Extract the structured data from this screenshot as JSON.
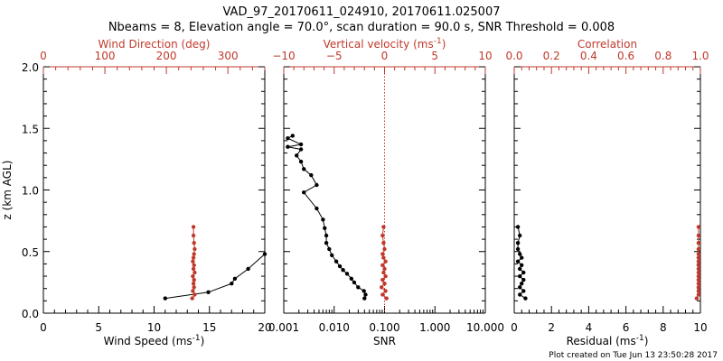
{
  "title_line1": "VAD_97_20170611_024910, 20170611.025007",
  "title_line2": "Nbeams = 8, Elevation angle = 70.0°, scan duration = 90.0 s, SNR Threshold = 0.008",
  "footer": "Plot created on Tue Jun 13 23:50:28 2017",
  "colors": {
    "primary": "#000000",
    "secondary": "#c0392b"
  },
  "chart_data": [
    {
      "type": "line",
      "ylabel": "z (km AGL)",
      "ylim": [
        0,
        2.0
      ],
      "yticks": [
        "0.0",
        "0.5",
        "1.0",
        "1.5",
        "2.0"
      ],
      "bottom_axis": {
        "label": "Wind Speed (ms",
        "label_sup": "-1",
        "label_end": ")",
        "range": [
          0,
          20
        ],
        "ticks": [
          "0",
          "5",
          "10",
          "15",
          "20"
        ]
      },
      "top_axis": {
        "label": "Wind Direction (deg)",
        "range": [
          0,
          360
        ],
        "ticks": [
          "0",
          "100",
          "200",
          "300"
        ]
      },
      "series": [
        {
          "axis": "bottom",
          "color": "primary",
          "x": [
            11.0,
            14.9,
            17.0,
            17.3,
            18.5,
            20.0
          ],
          "y": [
            0.12,
            0.17,
            0.24,
            0.28,
            0.36,
            0.48
          ]
        },
        {
          "axis": "top",
          "color": "secondary",
          "x": [
            242,
            246,
            243,
            245,
            244,
            245,
            243,
            246,
            244,
            245,
            243,
            244,
            245,
            246,
            245,
            244,
            244
          ],
          "y": [
            0.12,
            0.15,
            0.18,
            0.21,
            0.24,
            0.27,
            0.3,
            0.33,
            0.36,
            0.39,
            0.42,
            0.45,
            0.48,
            0.52,
            0.57,
            0.63,
            0.7
          ]
        }
      ]
    },
    {
      "type": "line",
      "bottom_axis": {
        "label": "SNR",
        "scale": "log",
        "range": [
          0.001,
          10
        ],
        "ticks": [
          "0.001",
          "0.010",
          "0.100",
          "1.000",
          "10.000"
        ]
      },
      "top_axis": {
        "label": "Vertical velocity (ms",
        "label_sup": "-1",
        "label_end": ")",
        "range": [
          -10,
          10
        ],
        "ticks": [
          "-10",
          "-5",
          "0",
          "5",
          "10"
        ],
        "reference_line": 0
      },
      "series": [
        {
          "axis": "bottom",
          "color": "primary",
          "x": [
            0.04,
            0.042,
            0.039,
            0.03,
            0.025,
            0.022,
            0.018,
            0.015,
            0.013,
            0.011,
            0.009,
            0.008,
            0.007,
            0.007,
            0.0065,
            0.006,
            0.0045,
            0.0025,
            0.0045,
            0.0035,
            0.0025,
            0.0022,
            0.0018,
            0.0022,
            0.0012,
            0.0022,
            0.0012,
            0.0015
          ],
          "y": [
            0.12,
            0.15,
            0.18,
            0.21,
            0.25,
            0.28,
            0.32,
            0.35,
            0.38,
            0.42,
            0.47,
            0.52,
            0.57,
            0.63,
            0.69,
            0.76,
            0.85,
            0.98,
            1.04,
            1.12,
            1.17,
            1.23,
            1.28,
            1.33,
            1.35,
            1.37,
            1.42,
            1.44
          ]
        },
        {
          "axis": "top",
          "color": "secondary",
          "x": [
            0.2,
            -0.2,
            0.1,
            -0.3,
            0.0,
            -0.2,
            0.1,
            -0.1,
            0.0,
            -0.2,
            0.1,
            -0.1,
            -0.2,
            0.0,
            -0.1,
            -0.2,
            -0.1
          ],
          "y": [
            0.12,
            0.15,
            0.18,
            0.21,
            0.24,
            0.27,
            0.3,
            0.33,
            0.36,
            0.39,
            0.42,
            0.45,
            0.48,
            0.52,
            0.57,
            0.63,
            0.7
          ]
        }
      ]
    },
    {
      "type": "line",
      "bottom_axis": {
        "label": "Residual (ms",
        "label_sup": "-1",
        "label_end": ")",
        "range": [
          0,
          10
        ],
        "ticks": [
          "0",
          "2",
          "4",
          "6",
          "8",
          "10"
        ]
      },
      "top_axis": {
        "label": "Correlation",
        "range": [
          0,
          1.0
        ],
        "ticks": [
          "0.0",
          "0.2",
          "0.4",
          "0.6",
          "0.8",
          "1.0"
        ]
      },
      "series": [
        {
          "axis": "bottom",
          "color": "primary",
          "x": [
            0.6,
            0.3,
            0.5,
            0.3,
            0.4,
            0.5,
            0.3,
            0.5,
            0.3,
            0.4,
            0.2,
            0.4,
            0.3,
            0.2,
            0.2,
            0.3,
            0.2
          ],
          "y": [
            0.12,
            0.15,
            0.18,
            0.21,
            0.24,
            0.27,
            0.3,
            0.33,
            0.36,
            0.39,
            0.42,
            0.45,
            0.48,
            0.52,
            0.57,
            0.63,
            0.7
          ]
        },
        {
          "axis": "top",
          "color": "secondary",
          "x": [
            0.98,
            0.99,
            0.99,
            0.99,
            0.99,
            0.99,
            0.99,
            0.99,
            0.99,
            0.99,
            0.99,
            0.99,
            0.99,
            0.99,
            0.99,
            0.99,
            0.99
          ],
          "y": [
            0.12,
            0.15,
            0.18,
            0.21,
            0.24,
            0.27,
            0.3,
            0.33,
            0.36,
            0.39,
            0.42,
            0.45,
            0.48,
            0.52,
            0.57,
            0.63,
            0.7
          ]
        }
      ]
    }
  ]
}
